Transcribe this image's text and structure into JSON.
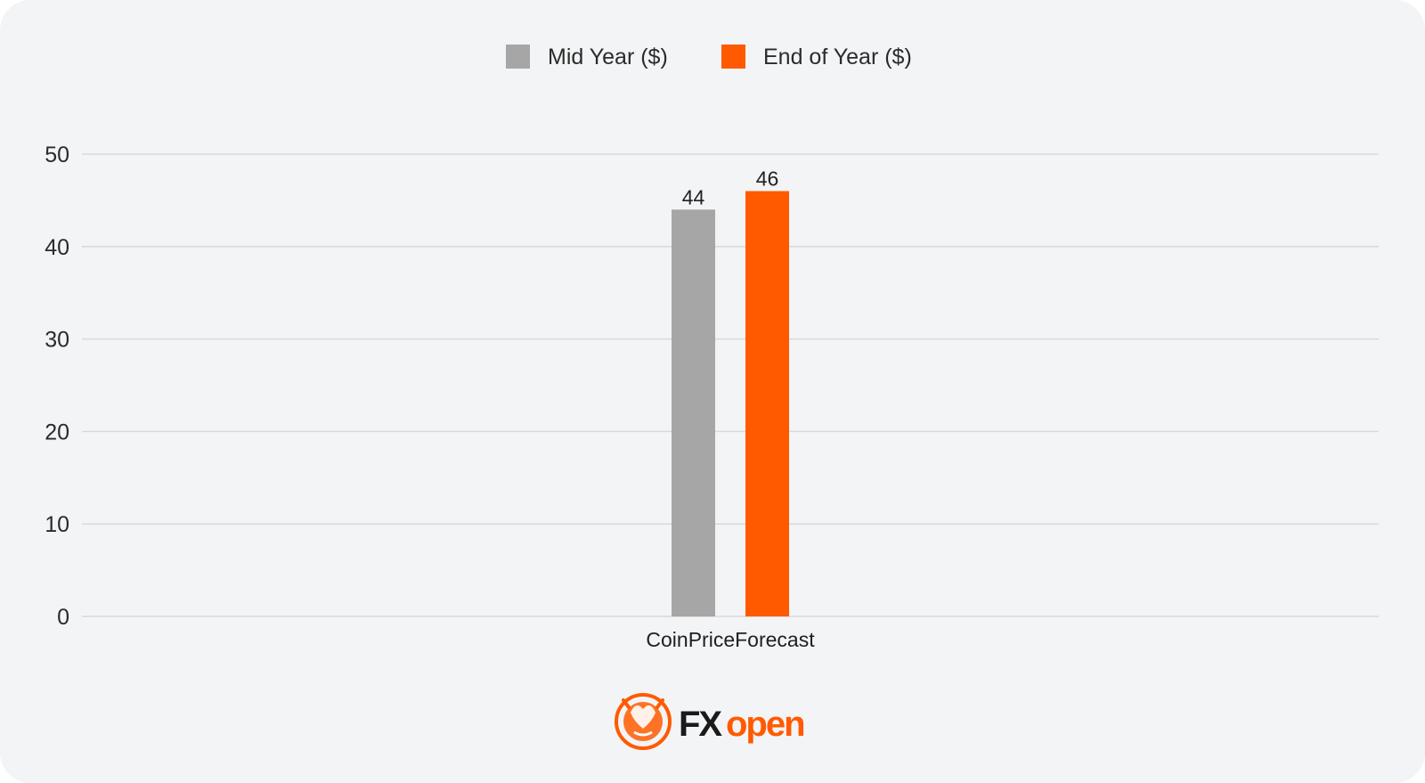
{
  "chart_data": {
    "type": "bar",
    "categories": [
      "CoinPriceForecast"
    ],
    "series": [
      {
        "name": "Mid Year ($)",
        "values": [
          44
        ],
        "color": "#a6a6a6"
      },
      {
        "name": "End of Year ($)",
        "values": [
          46
        ],
        "color": "#ff5a00"
      }
    ],
    "data_labels": [
      "44",
      "46"
    ],
    "ylim": [
      0,
      50
    ],
    "yticks": [
      0,
      10,
      20,
      30,
      40,
      50
    ],
    "grid": true,
    "legend_position": "top-center"
  },
  "brand": {
    "logo_text_fx": "FX",
    "logo_text_open": "open",
    "accent_color": "#ff5a00",
    "icon": "bull-bear-logo-icon"
  }
}
